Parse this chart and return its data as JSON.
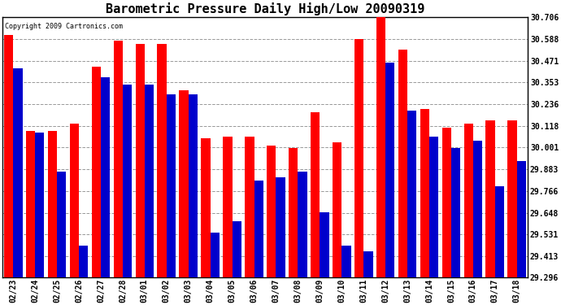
{
  "title": "Barometric Pressure Daily High/Low 20090319",
  "copyright": "Copyright 2009 Cartronics.com",
  "categories": [
    "02/23",
    "02/24",
    "02/25",
    "02/26",
    "02/27",
    "02/28",
    "03/01",
    "03/02",
    "03/03",
    "03/04",
    "03/05",
    "03/06",
    "03/07",
    "03/08",
    "03/09",
    "03/10",
    "03/11",
    "03/12",
    "03/13",
    "03/14",
    "03/15",
    "03/16",
    "03/17",
    "03/18"
  ],
  "highs": [
    30.61,
    30.09,
    30.09,
    30.13,
    30.44,
    30.58,
    30.56,
    30.56,
    30.31,
    30.05,
    30.06,
    30.06,
    30.01,
    30.0,
    30.19,
    30.03,
    30.59,
    30.72,
    30.53,
    30.21,
    30.11,
    30.13,
    30.15,
    30.15
  ],
  "lows": [
    30.43,
    30.08,
    29.87,
    29.47,
    30.38,
    30.34,
    30.34,
    30.29,
    30.29,
    29.54,
    29.6,
    29.82,
    29.84,
    29.87,
    29.65,
    29.47,
    29.44,
    30.46,
    30.2,
    30.06,
    30.0,
    30.04,
    29.79,
    29.93
  ],
  "high_color": "#ff0000",
  "low_color": "#0000cc",
  "bg_color": "#ffffff",
  "plot_bg_color": "#ffffff",
  "grid_color": "#999999",
  "title_fontsize": 11,
  "yticks": [
    29.296,
    29.413,
    29.531,
    29.648,
    29.766,
    29.883,
    30.001,
    30.118,
    30.236,
    30.353,
    30.471,
    30.588,
    30.706
  ],
  "ymin": 29.296,
  "ymax": 30.706,
  "bar_width": 0.42
}
